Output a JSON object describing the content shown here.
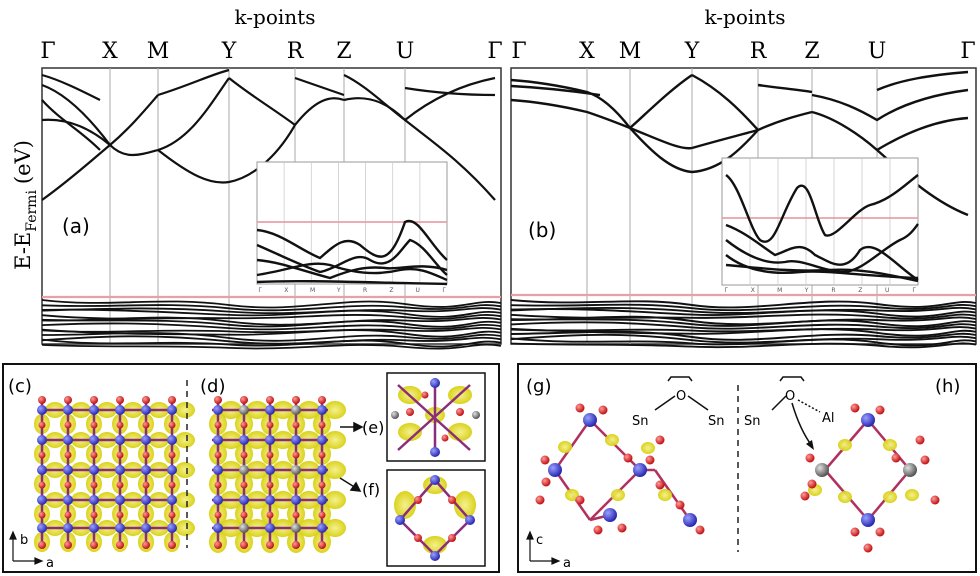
{
  "figure": {
    "band_panels": [
      {
        "id": "a",
        "panel_label": "(a)",
        "header": "k-points",
        "kpoint_labels": [
          "Γ",
          "X",
          "M",
          "Y",
          "R",
          "Z",
          "U",
          "Γ"
        ],
        "inset_tick_labels": [
          "Γ",
          "X",
          "M",
          "Y",
          "R",
          "Z",
          "U",
          "Γ"
        ]
      },
      {
        "id": "b",
        "panel_label": "(b)",
        "header": "k-points",
        "kpoint_labels": [
          "Γ",
          "X",
          "M",
          "Y",
          "R",
          "Z",
          "U",
          "Γ"
        ],
        "inset_tick_labels": [
          "Γ",
          "X",
          "M",
          "Y",
          "R",
          "Z",
          "U",
          "Γ"
        ]
      }
    ],
    "y_axis_label": "E-E",
    "y_axis_subscript": "Fermi",
    "y_axis_unit": "(eV)",
    "structure_left": {
      "labels": [
        "(c)",
        "(d)",
        "(e)",
        "(f)"
      ],
      "axis_vertical": "b",
      "axis_horizontal": "a"
    },
    "structure_right": {
      "labels": [
        "(g)",
        "(h)"
      ],
      "axis_vertical": "c",
      "axis_horizontal": "a",
      "atoms_g": [
        "Sn",
        "O",
        "Sn"
      ],
      "atoms_h": [
        "Sn",
        "O",
        "Al"
      ]
    },
    "colors": {
      "fermi_line": "#e8a0a8",
      "sn_atom": "#3838c8",
      "o_atom": "#d82020",
      "density": "#e6e020",
      "al_atom": "#909090"
    }
  }
}
